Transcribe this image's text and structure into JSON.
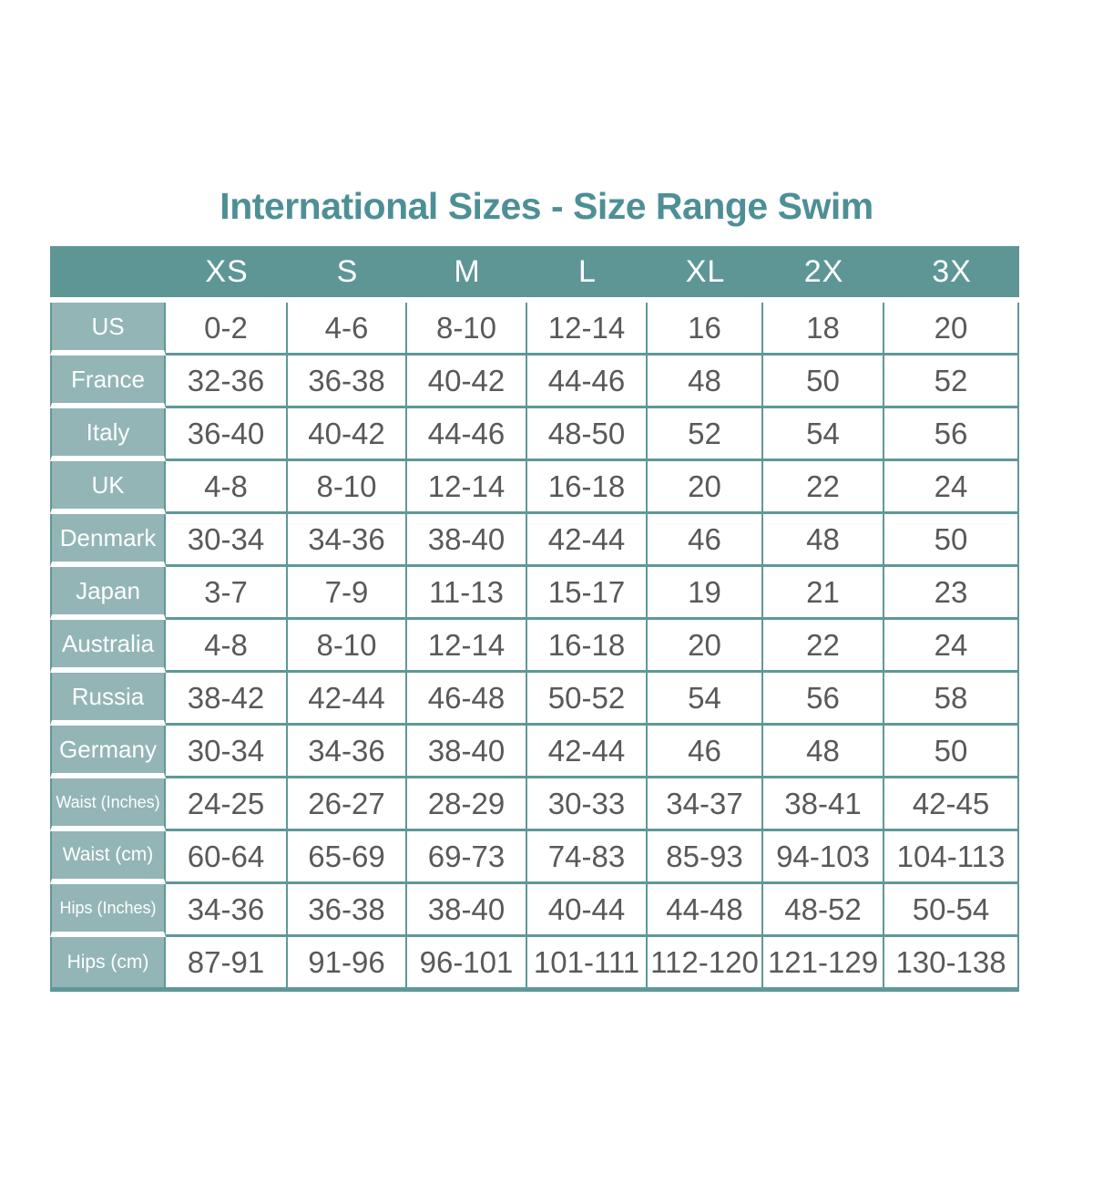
{
  "title": "International Sizes - Size Range Swim",
  "colors": {
    "header_bg": "#5E9696",
    "label_bg": "#93B5B6",
    "grid": "#5F9898",
    "title_color": "#4E8F96",
    "data_text": "#58595B"
  },
  "chart_data": {
    "type": "table",
    "title": "International Sizes - Size Range Swim",
    "columns": [
      "",
      "XS",
      "S",
      "M",
      "L",
      "XL",
      "2X",
      "3X"
    ],
    "rows": [
      {
        "label": "US",
        "values": [
          "0-2",
          "4-6",
          "8-10",
          "12-14",
          "16",
          "18",
          "20"
        ]
      },
      {
        "label": "France",
        "values": [
          "32-36",
          "36-38",
          "40-42",
          "44-46",
          "48",
          "50",
          "52"
        ]
      },
      {
        "label": "Italy",
        "values": [
          "36-40",
          "40-42",
          "44-46",
          "48-50",
          "52",
          "54",
          "56"
        ]
      },
      {
        "label": "UK",
        "values": [
          "4-8",
          "8-10",
          "12-14",
          "16-18",
          "20",
          "22",
          "24"
        ]
      },
      {
        "label": "Denmark",
        "values": [
          "30-34",
          "34-36",
          "38-40",
          "42-44",
          "46",
          "48",
          "50"
        ]
      },
      {
        "label": "Japan",
        "values": [
          "3-7",
          "7-9",
          "11-13",
          "15-17",
          "19",
          "21",
          "23"
        ]
      },
      {
        "label": "Australia",
        "values": [
          "4-8",
          "8-10",
          "12-14",
          "16-18",
          "20",
          "22",
          "24"
        ]
      },
      {
        "label": "Russia",
        "values": [
          "38-42",
          "42-44",
          "46-48",
          "50-52",
          "54",
          "56",
          "58"
        ]
      },
      {
        "label": "Germany",
        "values": [
          "30-34",
          "34-36",
          "38-40",
          "42-44",
          "46",
          "48",
          "50"
        ]
      },
      {
        "label": "Waist (Inches)",
        "values": [
          "24-25",
          "26-27",
          "28-29",
          "30-33",
          "34-37",
          "38-41",
          "42-45"
        ]
      },
      {
        "label": "Waist (cm)",
        "values": [
          "60-64",
          "65-69",
          "69-73",
          "74-83",
          "85-93",
          "94-103",
          "104-113"
        ]
      },
      {
        "label": "Hips (Inches)",
        "values": [
          "34-36",
          "36-38",
          "38-40",
          "40-44",
          "44-48",
          "48-52",
          "50-54"
        ]
      },
      {
        "label": "Hips (cm)",
        "values": [
          "87-91",
          "91-96",
          "96-101",
          "101-111",
          "112-120",
          "121-129",
          "130-138"
        ]
      }
    ]
  }
}
